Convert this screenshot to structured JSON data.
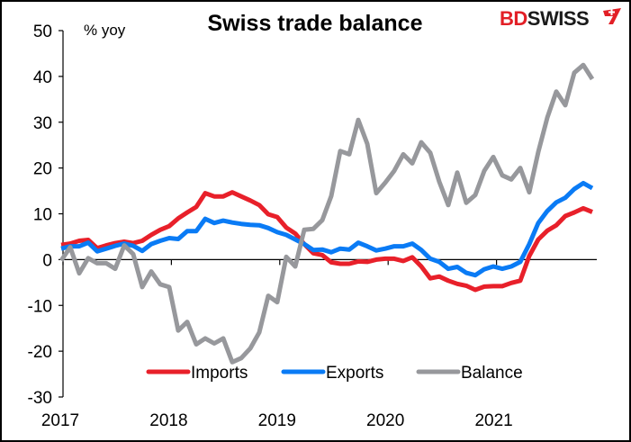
{
  "logo": {
    "part1": "BD",
    "part2": "SWISS",
    "part1_color": "#e21f26",
    "part2_color": "#1a1a1a",
    "flag_color": "#e21f26"
  },
  "chart_data": {
    "type": "line",
    "title": "Swiss trade balance",
    "ylabel": "% yoy",
    "xlabel": "",
    "ylim": [
      -30,
      50
    ],
    "yticks": [
      -30,
      -20,
      -10,
      0,
      10,
      20,
      30,
      40,
      50
    ],
    "xticks": [
      "2017",
      "2018",
      "2019",
      "2020",
      "2021"
    ],
    "x_start": "2017-01",
    "x_frequency": "monthly",
    "x_count": 60,
    "grid": false,
    "legend": {
      "placement": "bottom-center",
      "entries": [
        "Imports",
        "Exports",
        "Balance"
      ]
    },
    "series": [
      {
        "name": "Imports",
        "color": "#e8202a",
        "values": [
          3.2,
          3.5,
          4.1,
          4.3,
          2.5,
          3.1,
          3.6,
          3.9,
          3.6,
          4.1,
          5.4,
          6.5,
          7.3,
          9.0,
          10.3,
          11.5,
          14.5,
          13.8,
          13.8,
          14.7,
          13.8,
          12.9,
          11.9,
          9.9,
          9.3,
          7.0,
          5.7,
          3.4,
          1.4,
          1.0,
          -0.6,
          -0.9,
          -0.9,
          -0.4,
          -0.5,
          0.0,
          0.2,
          0.2,
          -0.3,
          0.5,
          -1.5,
          -4.1,
          -3.7,
          -4.6,
          -5.3,
          -5.7,
          -6.6,
          -5.9,
          -5.8,
          -5.8,
          -5.1,
          -4.6,
          0.8,
          4.4,
          6.3,
          7.5,
          9.5,
          10.3,
          11.2,
          10.4
        ]
      },
      {
        "name": "Exports",
        "color": "#0a7bf5",
        "values": [
          2.4,
          2.9,
          2.9,
          3.7,
          1.8,
          2.4,
          3.0,
          3.5,
          3.0,
          1.9,
          3.4,
          4.1,
          4.7,
          4.5,
          6.2,
          6.2,
          8.9,
          8.0,
          8.5,
          8.1,
          7.8,
          7.6,
          7.5,
          6.9,
          6.0,
          5.4,
          4.4,
          3.4,
          2.1,
          2.2,
          1.6,
          2.4,
          2.2,
          3.7,
          2.9,
          2.0,
          2.4,
          2.9,
          2.9,
          3.5,
          2.1,
          0.2,
          -0.5,
          -2.0,
          -1.6,
          -2.9,
          -3.4,
          -2.1,
          -1.5,
          -2.0,
          -1.5,
          -0.5,
          3.4,
          8.0,
          10.6,
          12.5,
          13.5,
          15.4,
          16.7,
          15.6
        ]
      },
      {
        "name": "Balance",
        "color": "#97989c",
        "values": [
          -0.2,
          2.7,
          -3.0,
          0.3,
          -0.8,
          -0.8,
          -2.0,
          3.1,
          1.2,
          -6.0,
          -2.6,
          -5.4,
          -6.0,
          -15.5,
          -13.6,
          -18.5,
          -17.2,
          -18.3,
          -17.2,
          -22.4,
          -21.5,
          -19.4,
          -15.9,
          -7.9,
          -9.3,
          0.6,
          -1.5,
          6.5,
          6.7,
          8.6,
          13.9,
          23.7,
          23.0,
          30.5,
          25.3,
          14.5,
          16.8,
          19.4,
          23.0,
          21.0,
          25.6,
          23.3,
          17.0,
          11.9,
          19.0,
          12.4,
          14.1,
          19.4,
          22.4,
          18.4,
          17.5,
          20.0,
          14.7,
          23.5,
          31.0,
          36.7,
          33.7,
          40.8,
          42.5,
          39.4
        ]
      }
    ]
  }
}
